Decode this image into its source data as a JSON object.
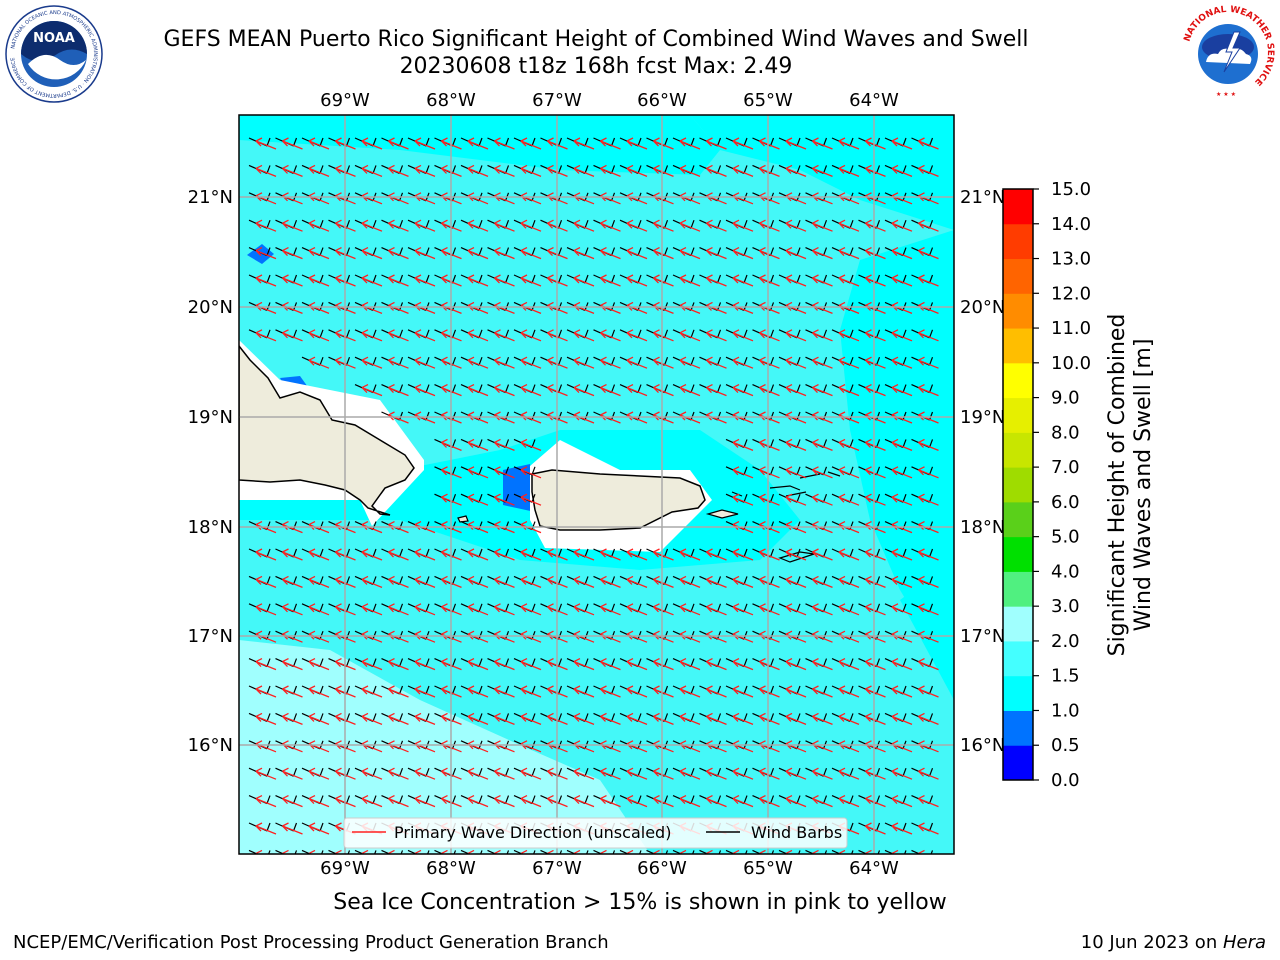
{
  "header": {
    "title_line1": "GEFS MEAN Puerto Rico Significant Height of Combined Wind Waves and Swell",
    "title_line2": "20230608 t18z 168h fcst   Max: 2.49"
  },
  "logos": {
    "left_text": "NOAA",
    "left_ring_text": "NATIONAL OCEANIC AND ATMOSPHERIC ADMINISTRATION · U.S. DEPARTMENT OF COMMERCE",
    "right_ring_text": "NATIONAL WEATHER SERVICE"
  },
  "map": {
    "lon_labels": [
      "69°W",
      "68°W",
      "67°W",
      "66°W",
      "65°W",
      "64°W"
    ],
    "lat_labels": [
      "21°N",
      "20°N",
      "19°N",
      "18°N",
      "17°N",
      "16°N"
    ],
    "legend": {
      "wave_dir": "Primary Wave Direction (unscaled)",
      "wind_barbs": "Wind Barbs"
    },
    "colors": {
      "ocean_main": "#00ffff",
      "ocean_mid": "#44f8f8",
      "ocean_light": "#a0fffe",
      "land": "#eeecdc",
      "wave_arrow": "#ff2020"
    }
  },
  "colorbar": {
    "label_line1": "Significant Height of Combined",
    "label_line2": "Wind Waves and Swell [m]",
    "ticks": [
      "0.0",
      "0.5",
      "1.0",
      "1.5",
      "2.0",
      "3.0",
      "4.0",
      "5.0",
      "6.0",
      "7.0",
      "8.0",
      "9.0",
      "10.0",
      "11.0",
      "12.0",
      "13.0",
      "14.0",
      "15.0"
    ],
    "colors": [
      "#0000ff",
      "#0073ff",
      "#00ffff",
      "#44ffff",
      "#a0fffe",
      "#50f080",
      "#00e000",
      "#5ad01a",
      "#9fdc00",
      "#c8e600",
      "#e6ef00",
      "#ffff00",
      "#ffbe00",
      "#ff8c00",
      "#ff6400",
      "#ff3c00",
      "#ff0000"
    ]
  },
  "footer": {
    "ice_note": "Sea Ice Concentration > 15% is shown in pink to yellow",
    "left": "NCEP/EMC/Verification Post Processing Product Generation Branch",
    "right_date": "10 Jun 2023 on ",
    "right_host": "Hera"
  }
}
